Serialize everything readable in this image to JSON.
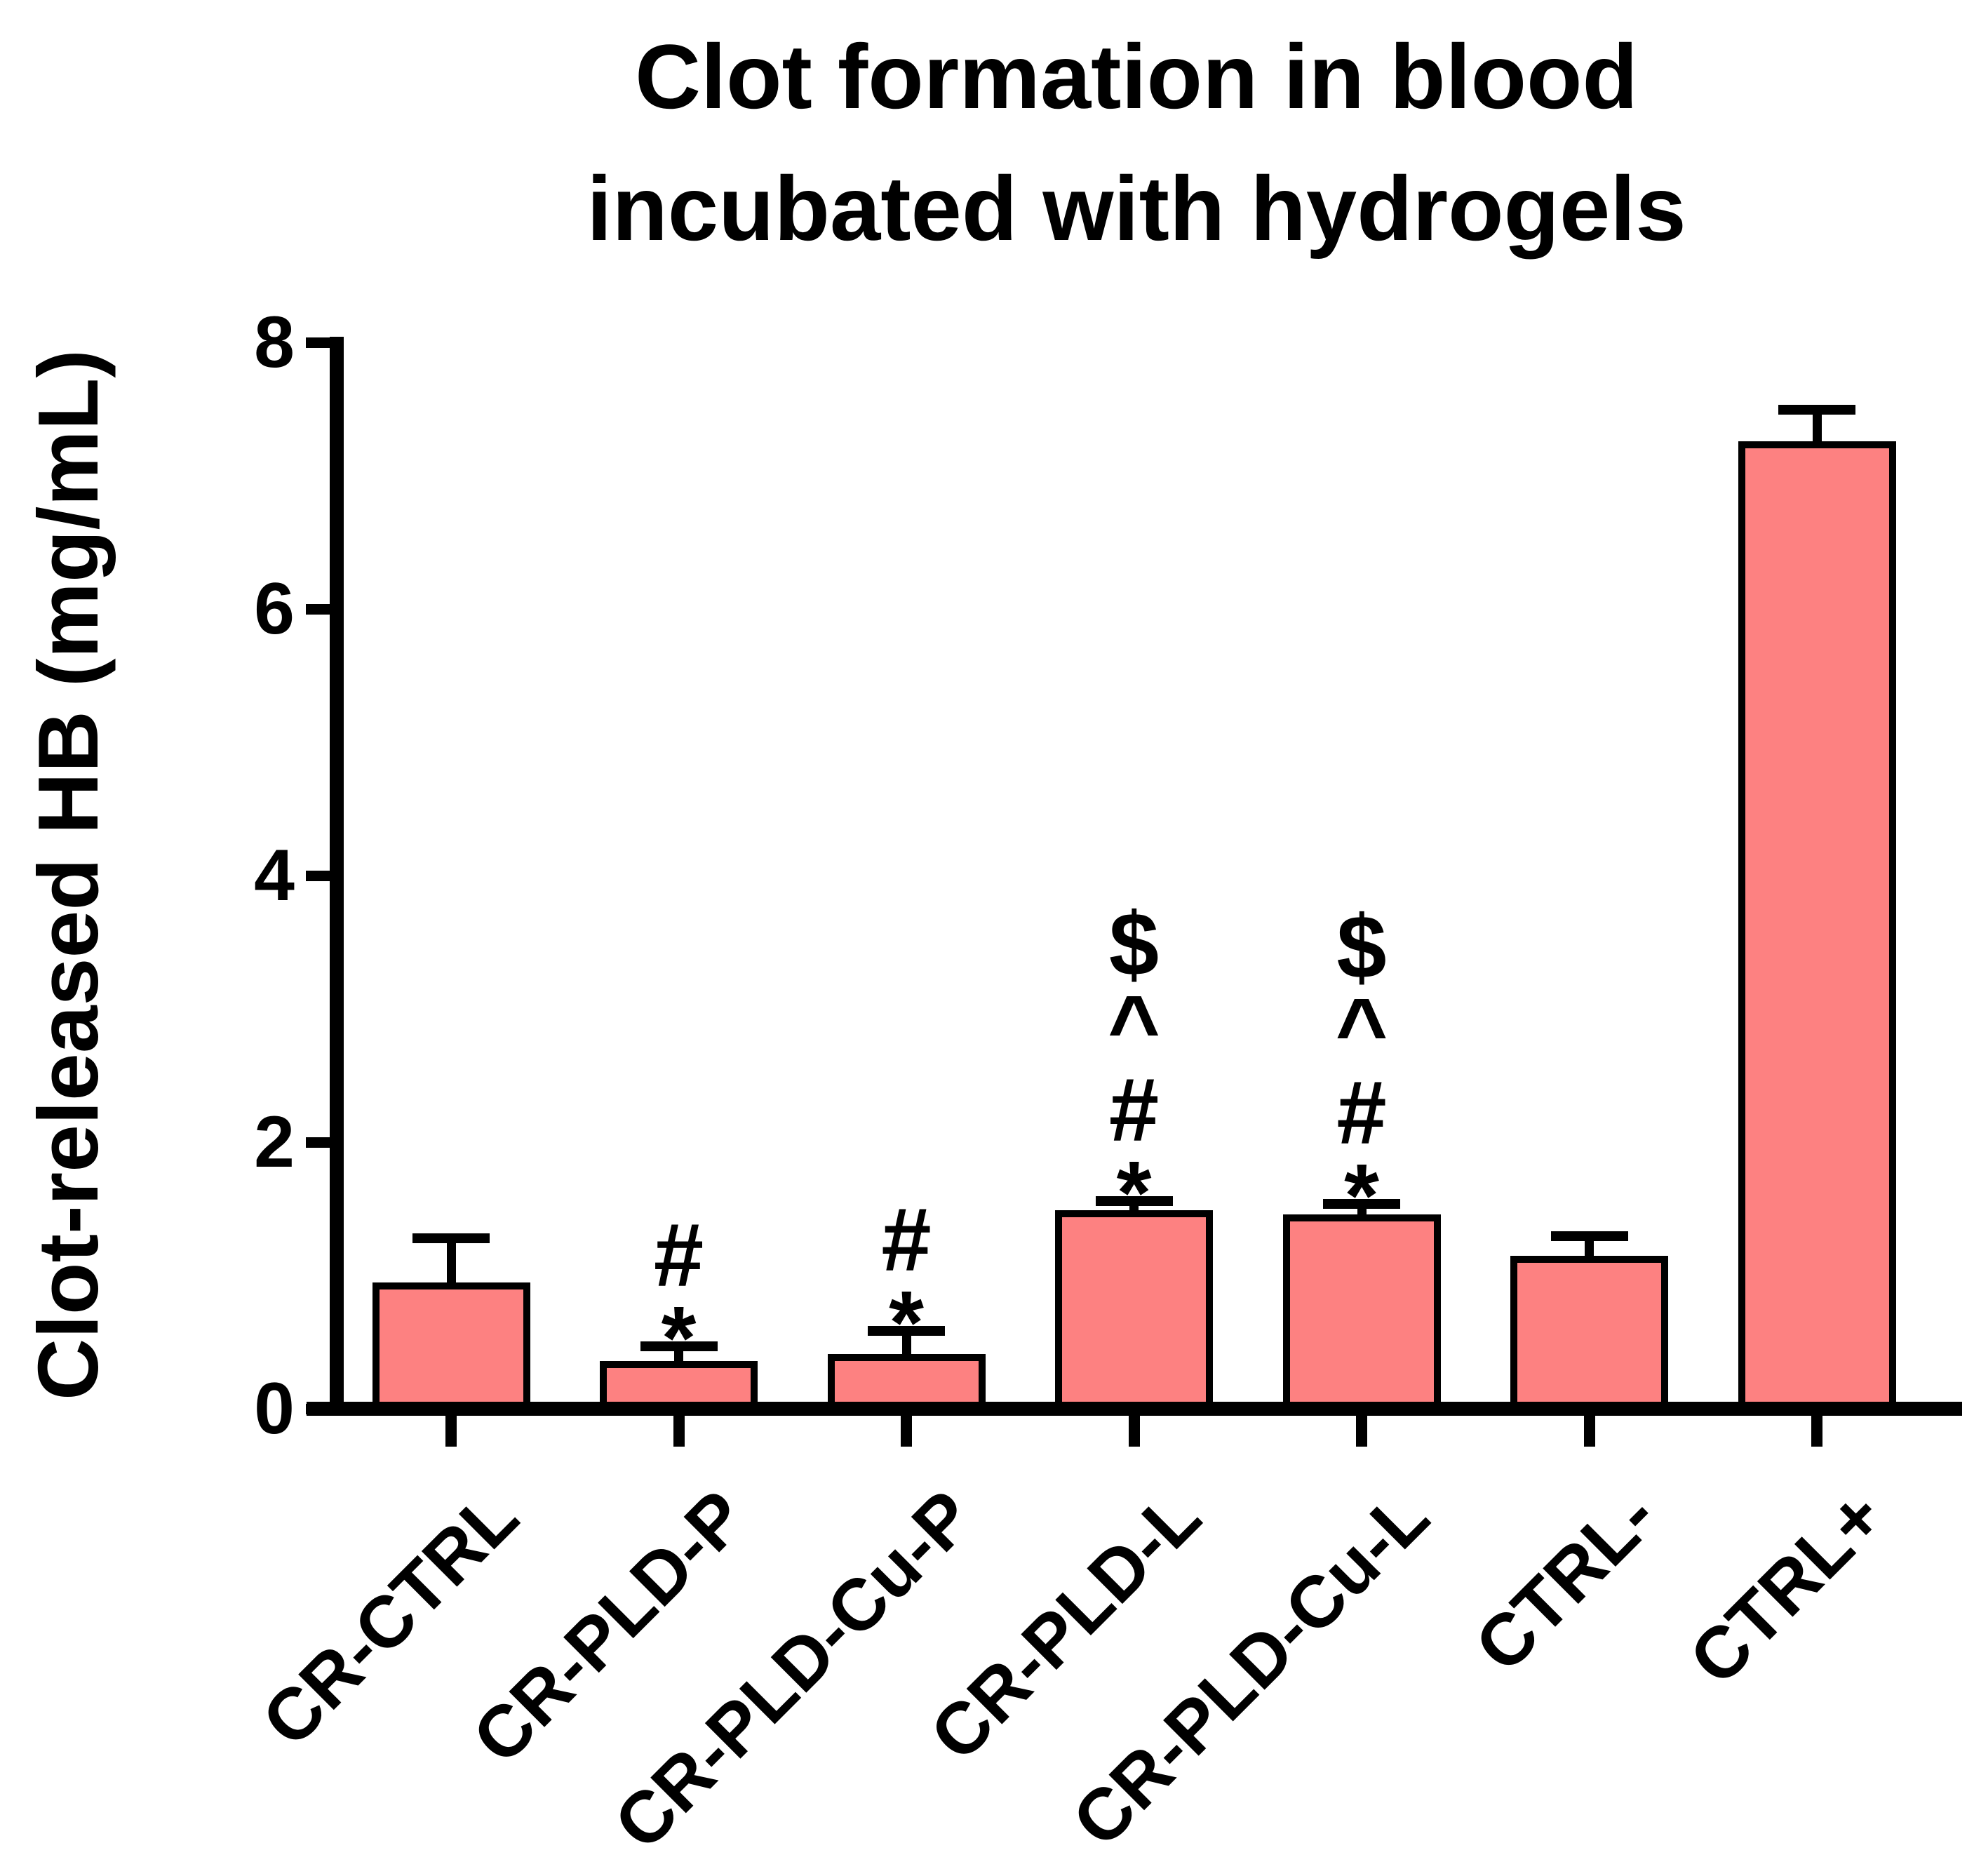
{
  "chart_data": {
    "type": "bar",
    "title": "Clot formation in blood incubated with hydrogels",
    "title_lines": [
      "Clot formation in blood",
      "incubated with hydrogels"
    ],
    "ylabel": "Clot-released HB (mg/mL)",
    "xlabel": "",
    "categories": [
      "CR-CTRL",
      "CR-PLD-P",
      "CR-PLD-Cu-P",
      "CR-PLD-L",
      "CR-PLD-Cu-L",
      "CTRL-",
      "CTRL+"
    ],
    "values": [
      0.95,
      0.36,
      0.41,
      1.49,
      1.46,
      1.15,
      7.26
    ],
    "errors": [
      0.29,
      0.07,
      0.14,
      0.03,
      0.04,
      0.11,
      0.2
    ],
    "annotations": [
      [],
      [
        "#",
        "*"
      ],
      [
        "#",
        "*"
      ],
      [
        "$",
        "^",
        "#",
        "*"
      ],
      [
        "$",
        "^",
        "#",
        "*"
      ],
      [],
      []
    ],
    "yticks": [
      "0",
      "2",
      "4",
      "6",
      "8"
    ],
    "ytick_values": [
      0,
      2,
      4,
      6,
      8
    ],
    "ylim": [
      0,
      8
    ],
    "grid": false,
    "legend": null,
    "bar_color": "#FD8181",
    "bar_edge_color": "#000000",
    "axis_color": "#000000",
    "text_color": "#000000"
  }
}
